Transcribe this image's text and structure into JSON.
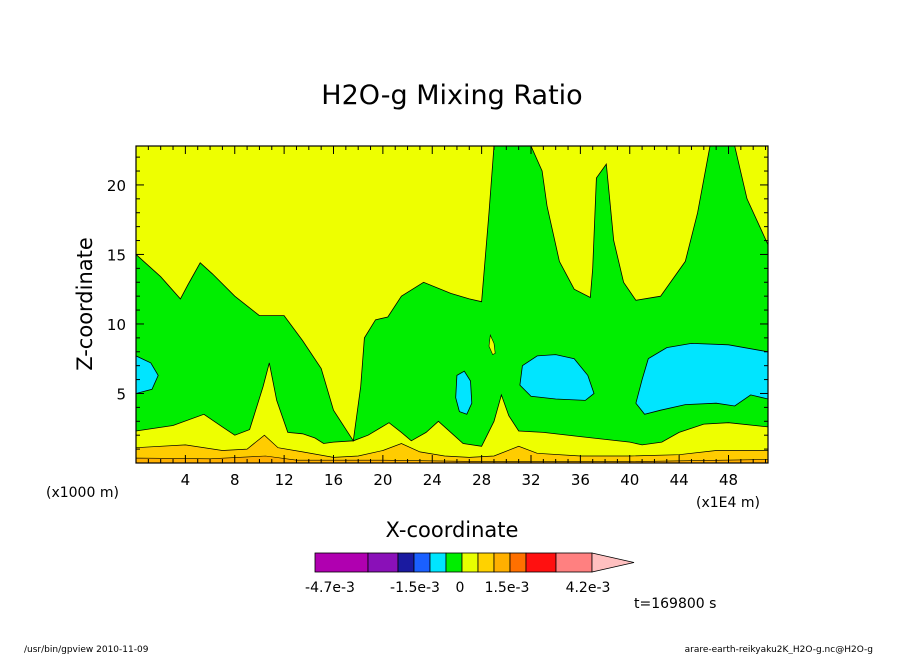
{
  "chart_data": {
    "type": "contour",
    "title": "H2O-g Mixing Ratio",
    "xlabel": "X-coordinate",
    "ylabel": "Z-coordinate",
    "x_unit_left": "(x1000 m)",
    "x_unit_right": "(x1E4 m)",
    "xlim": [
      0,
      51.2
    ],
    "ylim": [
      0,
      22.8
    ],
    "xticks": [
      4,
      8,
      12,
      16,
      20,
      24,
      28,
      32,
      36,
      40,
      44,
      48
    ],
    "yticks": [
      5,
      10,
      15,
      20
    ],
    "time_label": "t=169800 s",
    "colorbar": {
      "colors": [
        "#b000b0",
        "#8a10b8",
        "#1a1aa0",
        "#1a60ff",
        "#00e5ff",
        "#00ee00",
        "#e8ff00",
        "#ffd200",
        "#ffb000",
        "#ff7000",
        "#ff1010",
        "#ff8080",
        "#ffc0c0"
      ],
      "labels": [
        "-4.7e-3",
        "-1.5e-3",
        "0",
        "1.5e-3",
        "4.2e-3"
      ]
    },
    "regions": {
      "yellow_background": "#eeff00",
      "green": "#00ee00",
      "cyan": "#00e5ff",
      "gold": "#ffcc00",
      "orange_band": "#ffb000"
    },
    "green_top_boundary": [
      [
        0,
        15.0
      ],
      [
        2,
        13.4
      ],
      [
        3.6,
        11.8
      ],
      [
        4.2,
        12.8
      ],
      [
        5.2,
        14.4
      ],
      [
        6.2,
        13.6
      ],
      [
        8,
        12.0
      ],
      [
        10,
        10.6
      ],
      [
        12,
        10.6
      ],
      [
        13.5,
        8.8
      ],
      [
        15,
        6.8
      ],
      [
        16,
        3.8
      ],
      [
        17.6,
        1.6
      ],
      [
        18.2,
        5.5
      ],
      [
        18.5,
        9.0
      ],
      [
        19.4,
        10.3
      ],
      [
        20.4,
        10.5
      ],
      [
        21.5,
        12.0
      ],
      [
        23.3,
        13.0
      ],
      [
        25.5,
        12.2
      ],
      [
        27,
        11.8
      ],
      [
        28,
        11.6
      ],
      [
        28.6,
        18
      ],
      [
        29,
        22.8
      ],
      [
        32,
        22.8
      ],
      [
        32.9,
        21
      ],
      [
        33.3,
        18.5
      ],
      [
        34.3,
        14.5
      ],
      [
        35.5,
        12.5
      ],
      [
        36.8,
        11.9
      ],
      [
        37,
        14
      ],
      [
        37.3,
        20.5
      ],
      [
        38.1,
        21.5
      ],
      [
        38.7,
        16
      ],
      [
        39.5,
        13
      ],
      [
        40.5,
        11.7
      ],
      [
        42.5,
        12.0
      ],
      [
        44.5,
        14.5
      ],
      [
        45.5,
        18
      ],
      [
        46.5,
        22.8
      ],
      [
        48.5,
        22.8
      ],
      [
        49.5,
        19
      ],
      [
        51.2,
        15.7
      ]
    ],
    "green_bottom_boundary": [
      [
        0,
        2.3
      ],
      [
        3,
        2.7
      ],
      [
        5.5,
        3.5
      ],
      [
        7,
        2.6
      ],
      [
        8,
        2.0
      ],
      [
        9.2,
        2.4
      ],
      [
        10.3,
        5.5
      ],
      [
        10.8,
        7.2
      ],
      [
        11.4,
        4.5
      ],
      [
        12.3,
        2.2
      ],
      [
        13.5,
        2.1
      ],
      [
        14.5,
        1.8
      ],
      [
        15.2,
        1.4
      ],
      [
        16,
        1.5
      ],
      [
        17.6,
        1.6
      ],
      [
        18.8,
        2.0
      ],
      [
        20.5,
        2.9
      ],
      [
        21.5,
        2.2
      ],
      [
        22.3,
        1.6
      ],
      [
        23.5,
        2.2
      ],
      [
        24.5,
        3.0
      ],
      [
        25.5,
        2.2
      ],
      [
        26.5,
        1.4
      ],
      [
        28,
        1.2
      ],
      [
        29,
        3.0
      ],
      [
        29.6,
        4.9
      ],
      [
        30.2,
        3.4
      ],
      [
        31,
        2.3
      ],
      [
        33,
        2.2
      ],
      [
        36,
        1.9
      ],
      [
        38,
        1.7
      ],
      [
        40,
        1.5
      ],
      [
        41,
        1.3
      ],
      [
        42.6,
        1.5
      ],
      [
        44,
        2.2
      ],
      [
        46,
        2.8
      ],
      [
        48,
        2.9
      ],
      [
        51.2,
        2.6
      ]
    ],
    "cyan_regions": [
      [
        [
          0,
          7.7
        ],
        [
          1.2,
          7.2
        ],
        [
          1.8,
          6.3
        ],
        [
          1.3,
          5.3
        ],
        [
          0,
          5.0
        ]
      ],
      [
        [
          26,
          6.3
        ],
        [
          26.6,
          6.6
        ],
        [
          27.1,
          5.9
        ],
        [
          27.2,
          4.3
        ],
        [
          26.8,
          3.5
        ],
        [
          26.2,
          3.7
        ],
        [
          25.9,
          4.7
        ]
      ],
      [
        [
          31.3,
          7.0
        ],
        [
          32.5,
          7.7
        ],
        [
          34,
          7.8
        ],
        [
          35.5,
          7.5
        ],
        [
          36.6,
          6.3
        ],
        [
          37.1,
          5.0
        ],
        [
          36.4,
          4.5
        ],
        [
          34,
          4.6
        ],
        [
          32,
          4.8
        ],
        [
          31.1,
          5.6
        ]
      ],
      [
        [
          40.5,
          4.3
        ],
        [
          41,
          6.0
        ],
        [
          41.5,
          7.5
        ],
        [
          43,
          8.3
        ],
        [
          45,
          8.6
        ],
        [
          48,
          8.5
        ],
        [
          51.2,
          8.0
        ],
        [
          51.2,
          4.6
        ],
        [
          49.8,
          4.9
        ],
        [
          48.5,
          4.1
        ],
        [
          47,
          4.3
        ],
        [
          44.5,
          4.2
        ],
        [
          42.5,
          3.8
        ],
        [
          41.2,
          3.5
        ]
      ]
    ],
    "gold_top_boundary": [
      [
        0,
        1.1
      ],
      [
        4,
        1.3
      ],
      [
        7,
        0.9
      ],
      [
        9,
        1.0
      ],
      [
        10.4,
        2.0
      ],
      [
        11.5,
        1.1
      ],
      [
        13.5,
        0.8
      ],
      [
        16,
        0.4
      ],
      [
        18,
        0.5
      ],
      [
        20,
        0.9
      ],
      [
        21.5,
        1.4
      ],
      [
        23,
        0.8
      ],
      [
        25,
        0.5
      ],
      [
        27,
        0.4
      ],
      [
        29,
        0.5
      ],
      [
        31,
        1.2
      ],
      [
        32.5,
        0.7
      ],
      [
        36,
        0.5
      ],
      [
        40,
        0.5
      ],
      [
        44,
        0.6
      ],
      [
        47,
        0.9
      ],
      [
        51.2,
        0.9
      ]
    ],
    "orange_top_boundary": [
      [
        0,
        0.35
      ],
      [
        6,
        0.3
      ],
      [
        10.5,
        0.5
      ],
      [
        13,
        0.2
      ],
      [
        20,
        0.2
      ],
      [
        28,
        0.1
      ],
      [
        40,
        0.1
      ],
      [
        51.2,
        0.25
      ]
    ]
  },
  "footer": {
    "left": "/usr/bin/gpview  2010-11-09",
    "right": "arare-earth-reikyaku2K_H2O-g.nc@H2O-g"
  }
}
